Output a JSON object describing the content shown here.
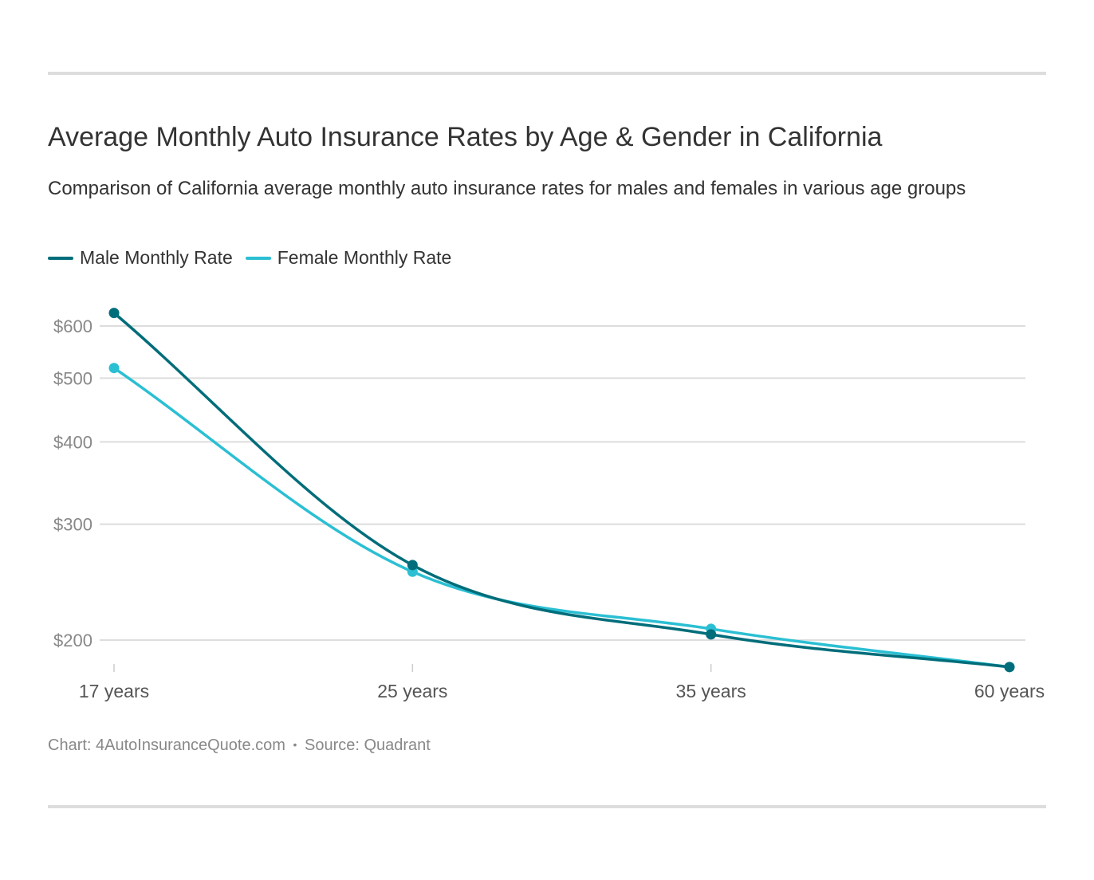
{
  "title": "Average Monthly Auto Insurance Rates by Age & Gender in California",
  "subtitle": "Comparison of California average monthly auto insurance rates for males and females in various age groups",
  "footer": {
    "chart_credit": "Chart: 4AutoInsuranceQuote.com",
    "separator": "•",
    "source": "Source: Quadrant"
  },
  "colors": {
    "male": "#006d7a",
    "female": "#2bbfd3",
    "grid": "#dddddd",
    "axis_text": "#888888"
  },
  "chart_data": {
    "type": "line",
    "title": "Average Monthly Auto Insurance Rates by Age & Gender in California",
    "xlabel": "",
    "ylabel": "",
    "y_scale": "log",
    "categories": [
      "17 years",
      "25 years",
      "35 years",
      "60 years"
    ],
    "y_ticks": [
      200,
      300,
      400,
      500,
      600
    ],
    "y_tick_labels": [
      "$200",
      "$300",
      "$400",
      "$500",
      "$600"
    ],
    "ylim": [
      180,
      630
    ],
    "grid": true,
    "legend_position": "top-left",
    "series": [
      {
        "name": "Male Monthly Rate",
        "values": [
          628,
          260,
          204,
          182
        ]
      },
      {
        "name": "Female Monthly Rate",
        "values": [
          518,
          254,
          208,
          182
        ]
      }
    ]
  }
}
